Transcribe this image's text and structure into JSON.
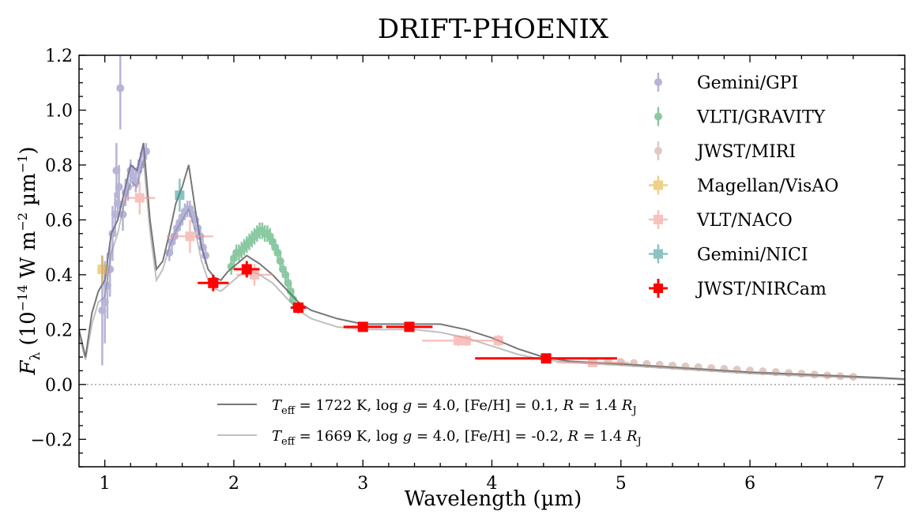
{
  "chart_data": {
    "type": "scatter",
    "title": "DRIFT-PHOENIX",
    "xlabel": "Wavelength (µm)",
    "ylabel": "F_λ (10^-14 W m^-2 µm^-1)",
    "ylabel_parts": {
      "F": "F",
      "lambda": "λ",
      "open": " (10",
      "exp1": "−14",
      "mid": " W m",
      "exp2": "−2",
      "mid2": " µm",
      "exp3": "−1",
      "close": ")"
    },
    "xlim": [
      0.8,
      7.2
    ],
    "ylim": [
      -0.3,
      1.2
    ],
    "xticks": [
      "1",
      "2",
      "3",
      "4",
      "5",
      "6",
      "7"
    ],
    "yticks": [
      "−0.2",
      "0.0",
      "0.2",
      "0.4",
      "0.6",
      "0.8",
      "1.0",
      "1.2"
    ],
    "zero_line": true,
    "legend_position": "top-right",
    "models": [
      {
        "name": "model-1722K",
        "color": "#777777",
        "label_parts": {
          "t": "T",
          "sub": "eff",
          "a": " = 1722 K, log ",
          "g": "g",
          "b": " = 4.0, [Fe/H] = 0.1, ",
          "r": "R",
          "c": " = 1.4 ",
          "rj": "R",
          "rjsub": "J"
        },
        "x": [
          0.8,
          0.85,
          0.9,
          0.95,
          1.0,
          1.05,
          1.1,
          1.15,
          1.2,
          1.25,
          1.3,
          1.35,
          1.4,
          1.45,
          1.5,
          1.55,
          1.6,
          1.65,
          1.7,
          1.75,
          1.8,
          1.85,
          1.9,
          1.95,
          2.0,
          2.1,
          2.2,
          2.3,
          2.4,
          2.5,
          2.6,
          2.8,
          3.0,
          3.2,
          3.4,
          3.6,
          3.8,
          4.0,
          4.2,
          4.4,
          4.6,
          5.0,
          5.5,
          6.0,
          6.5,
          7.0,
          7.2
        ],
        "y": [
          0.2,
          0.1,
          0.26,
          0.34,
          0.38,
          0.55,
          0.6,
          0.7,
          0.8,
          0.78,
          0.88,
          0.6,
          0.42,
          0.45,
          0.55,
          0.66,
          0.72,
          0.8,
          0.64,
          0.5,
          0.42,
          0.39,
          0.38,
          0.41,
          0.43,
          0.47,
          0.44,
          0.4,
          0.35,
          0.3,
          0.27,
          0.24,
          0.22,
          0.22,
          0.22,
          0.22,
          0.2,
          0.17,
          0.13,
          0.1,
          0.085,
          0.075,
          0.06,
          0.045,
          0.035,
          0.025,
          0.02
        ]
      },
      {
        "name": "model-1669K",
        "color": "#c0c0c0",
        "label_parts": {
          "t": "T",
          "sub": "eff",
          "a": " = 1669 K, log ",
          "g": "g",
          "b": " = 4.0, [Fe/H] = -0.2, ",
          "r": "R",
          "c": " = 1.4 ",
          "rj": "R",
          "rjsub": "J"
        },
        "x": [
          0.8,
          0.85,
          0.9,
          0.95,
          1.0,
          1.05,
          1.1,
          1.15,
          1.2,
          1.25,
          1.3,
          1.35,
          1.4,
          1.45,
          1.5,
          1.55,
          1.6,
          1.65,
          1.7,
          1.75,
          1.8,
          1.85,
          1.9,
          1.95,
          2.0,
          2.1,
          2.2,
          2.3,
          2.4,
          2.5,
          2.6,
          2.8,
          3.0,
          3.2,
          3.4,
          3.6,
          3.8,
          4.0,
          4.2,
          4.4,
          4.6,
          5.0,
          5.5,
          6.0,
          6.5,
          7.0,
          7.2
        ],
        "y": [
          0.18,
          0.09,
          0.22,
          0.3,
          0.32,
          0.48,
          0.55,
          0.66,
          0.74,
          0.72,
          0.82,
          0.56,
          0.38,
          0.42,
          0.5,
          0.56,
          0.6,
          0.64,
          0.56,
          0.45,
          0.38,
          0.35,
          0.34,
          0.36,
          0.38,
          0.42,
          0.4,
          0.37,
          0.32,
          0.27,
          0.24,
          0.21,
          0.2,
          0.2,
          0.2,
          0.19,
          0.17,
          0.14,
          0.11,
          0.09,
          0.08,
          0.07,
          0.055,
          0.04,
          0.03,
          0.022,
          0.018
        ]
      }
    ],
    "series": [
      {
        "name": "Gemini/GPI",
        "color": "#7b78b8",
        "marker": "circle",
        "alpha": 0.55,
        "points": [
          [
            0.98,
            0.27
          ],
          [
            1.0,
            0.3
          ],
          [
            1.02,
            0.36
          ],
          [
            1.04,
            0.42
          ],
          [
            1.06,
            0.55
          ],
          [
            1.08,
            0.62
          ],
          [
            1.09,
            0.78
          ],
          [
            1.1,
            0.66
          ],
          [
            1.11,
            0.72
          ],
          [
            1.12,
            1.08
          ],
          [
            1.14,
            0.62
          ],
          [
            1.16,
            0.7
          ],
          [
            1.18,
            0.72
          ],
          [
            1.2,
            0.78
          ],
          [
            1.22,
            0.76
          ],
          [
            1.24,
            0.74
          ],
          [
            1.26,
            0.78
          ],
          [
            1.28,
            0.8
          ],
          [
            1.3,
            0.84
          ],
          [
            1.32,
            0.85
          ],
          [
            1.5,
            0.48
          ],
          [
            1.52,
            0.52
          ],
          [
            1.54,
            0.54
          ],
          [
            1.56,
            0.57
          ],
          [
            1.58,
            0.59
          ],
          [
            1.6,
            0.61
          ],
          [
            1.62,
            0.63
          ],
          [
            1.64,
            0.64
          ],
          [
            1.66,
            0.64
          ],
          [
            1.68,
            0.62
          ],
          [
            1.7,
            0.6
          ],
          [
            1.72,
            0.57
          ],
          [
            1.74,
            0.54
          ],
          [
            1.76,
            0.5
          ],
          [
            1.78,
            0.47
          ]
        ],
        "yerr": [
          0.2,
          0.15,
          0.12,
          0.1,
          0.1,
          0.08,
          0.1,
          0.06,
          0.08,
          0.15,
          0.06,
          0.05,
          0.05,
          0.04,
          0.04,
          0.04,
          0.04,
          0.03,
          0.03,
          0.03,
          0.03,
          0.03,
          0.03,
          0.03,
          0.03,
          0.03,
          0.03,
          0.03,
          0.03,
          0.03,
          0.03,
          0.03,
          0.03,
          0.03,
          0.03
        ]
      },
      {
        "name": "VLTI/GRAVITY",
        "color": "#2e9d57",
        "marker": "circle",
        "alpha": 0.55,
        "points": [
          [
            1.98,
            0.43
          ],
          [
            2.0,
            0.46
          ],
          [
            2.02,
            0.48
          ],
          [
            2.04,
            0.48
          ],
          [
            2.06,
            0.49
          ],
          [
            2.08,
            0.5
          ],
          [
            2.1,
            0.51
          ],
          [
            2.12,
            0.52
          ],
          [
            2.14,
            0.53
          ],
          [
            2.16,
            0.54
          ],
          [
            2.18,
            0.55
          ],
          [
            2.2,
            0.56
          ],
          [
            2.22,
            0.56
          ],
          [
            2.24,
            0.55
          ],
          [
            2.26,
            0.55
          ],
          [
            2.28,
            0.54
          ],
          [
            2.3,
            0.52
          ],
          [
            2.32,
            0.5
          ],
          [
            2.34,
            0.48
          ],
          [
            2.36,
            0.45
          ],
          [
            2.38,
            0.42
          ],
          [
            2.4,
            0.4
          ],
          [
            2.42,
            0.37
          ],
          [
            2.44,
            0.34
          ],
          [
            2.46,
            0.31
          ]
        ],
        "yerr": [
          0.03,
          0.03,
          0.03,
          0.03,
          0.03,
          0.03,
          0.03,
          0.03,
          0.03,
          0.03,
          0.03,
          0.03,
          0.03,
          0.03,
          0.03,
          0.03,
          0.03,
          0.03,
          0.03,
          0.03,
          0.03,
          0.03,
          0.03,
          0.03,
          0.03
        ]
      },
      {
        "name": "JWST/MIRI",
        "color": "#b98a7c",
        "marker": "circle",
        "alpha": 0.45,
        "points": [
          [
            4.9,
            0.085
          ],
          [
            5.0,
            0.082
          ],
          [
            5.1,
            0.078
          ],
          [
            5.2,
            0.075
          ],
          [
            5.3,
            0.072
          ],
          [
            5.4,
            0.069
          ],
          [
            5.5,
            0.066
          ],
          [
            5.6,
            0.063
          ],
          [
            5.7,
            0.06
          ],
          [
            5.8,
            0.057
          ],
          [
            5.9,
            0.054
          ],
          [
            6.0,
            0.051
          ],
          [
            6.1,
            0.048
          ],
          [
            6.2,
            0.045
          ],
          [
            6.3,
            0.042
          ],
          [
            6.4,
            0.039
          ],
          [
            6.5,
            0.036
          ],
          [
            6.6,
            0.033
          ],
          [
            6.7,
            0.03
          ],
          [
            6.8,
            0.028
          ]
        ],
        "yerr": [
          0.005,
          0.005,
          0.005,
          0.005,
          0.005,
          0.005,
          0.005,
          0.005,
          0.005,
          0.005,
          0.005,
          0.005,
          0.005,
          0.005,
          0.005,
          0.005,
          0.005,
          0.005,
          0.005,
          0.005
        ]
      },
      {
        "name": "Magellan/VisAO",
        "color": "#e3b23c",
        "marker": "square",
        "alpha": 0.6,
        "points": [
          [
            0.98,
            0.42
          ]
        ],
        "yerr": [
          0.05
        ],
        "xerr": [
          0.03
        ]
      },
      {
        "name": "VLT/NACO",
        "color": "#f29a94",
        "marker": "square",
        "alpha": 0.6,
        "points": [
          [
            1.27,
            0.68
          ],
          [
            1.66,
            0.54
          ],
          [
            2.16,
            0.4
          ],
          [
            3.74,
            0.16
          ],
          [
            3.8,
            0.16
          ],
          [
            4.05,
            0.16
          ],
          [
            4.78,
            0.08
          ]
        ],
        "yerr": [
          0.06,
          0.06,
          0.04,
          0.02,
          0.02,
          0.02,
          0.01
        ],
        "xerr": [
          0.12,
          0.18,
          0.14,
          0.28,
          0.06,
          0.04,
          0.28
        ]
      },
      {
        "name": "Gemini/NICI",
        "color": "#3f9c9a",
        "marker": "square",
        "alpha": 0.6,
        "points": [
          [
            1.58,
            0.69
          ]
        ],
        "yerr": [
          0.06
        ],
        "xerr": [
          0.03
        ]
      },
      {
        "name": "JWST/NIRCam",
        "color": "#ff0000",
        "marker": "square",
        "alpha": 1.0,
        "points": [
          [
            1.84,
            0.37
          ],
          [
            2.1,
            0.42
          ],
          [
            2.5,
            0.28
          ],
          [
            3.0,
            0.21
          ],
          [
            3.36,
            0.21
          ],
          [
            4.42,
            0.095
          ]
        ],
        "yerr": [
          0.03,
          0.03,
          0.02,
          0.01,
          0.01,
          0.01
        ],
        "xerr": [
          0.12,
          0.1,
          0.06,
          0.15,
          0.18,
          0.55
        ]
      }
    ]
  }
}
